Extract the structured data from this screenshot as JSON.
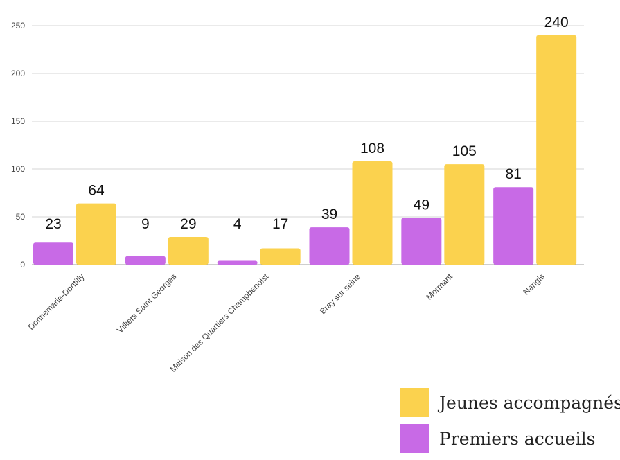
{
  "chart_data": {
    "type": "bar",
    "title": "",
    "xlabel": "",
    "ylabel": "",
    "categories": [
      "Donnemarie-Dontilly",
      "Villiers Saint Georges",
      "Maison des Quartiers Champbenoist",
      "Bray sur seine",
      "Mormant",
      "Nangis"
    ],
    "series": [
      {
        "name": "Premiers accueils",
        "color": "#c86ae6",
        "values": [
          23,
          9,
          4,
          39,
          49,
          81
        ]
      },
      {
        "name": "Jeunes accompagnés",
        "color": "#fbd24e",
        "values": [
          64,
          29,
          17,
          108,
          105,
          240
        ]
      }
    ],
    "yticks": [
      0,
      50,
      100,
      150,
      200,
      250
    ],
    "ylim": [
      0,
      250
    ],
    "grid": true,
    "legend_position": "bottom-right"
  },
  "legend": {
    "items": [
      {
        "label": "Jeunes accompagnés",
        "color": "#fbd24e"
      },
      {
        "label": "Premiers accueils",
        "color": "#c86ae6"
      }
    ]
  }
}
